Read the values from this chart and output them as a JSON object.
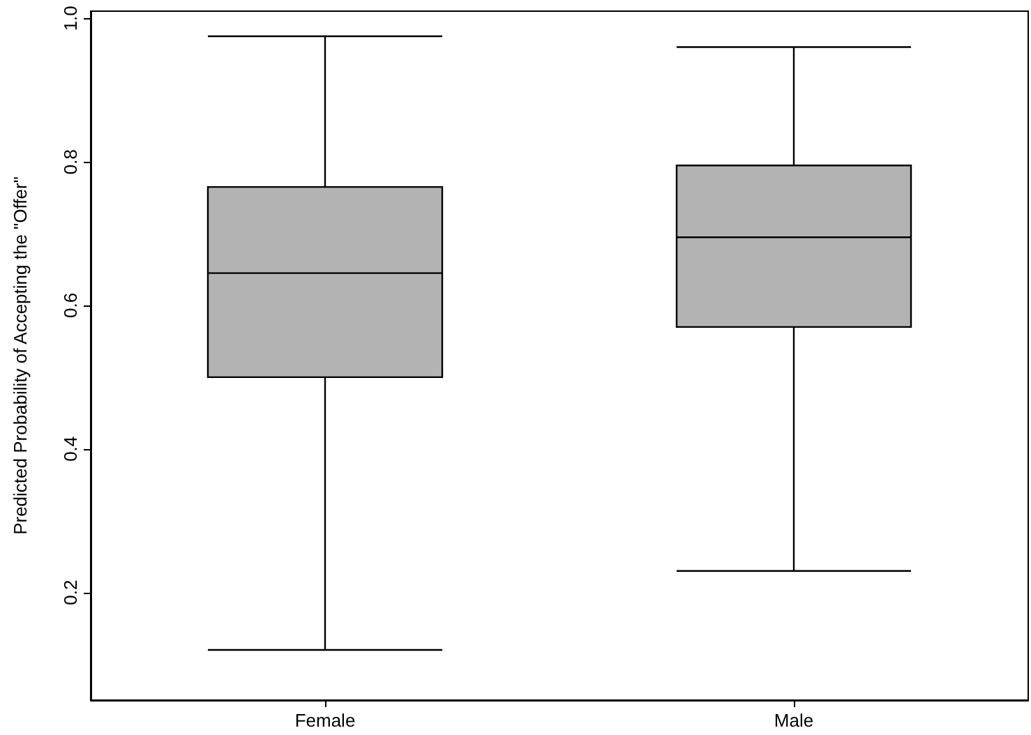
{
  "chart_data": {
    "type": "box",
    "ylabel": "Predicted Probability of Accepting the \"Offer\"",
    "categories": [
      "Female",
      "Male"
    ],
    "series": [
      {
        "color": "#b3b3b3",
        "boxes": [
          {
            "low": 0.12,
            "q1": 0.5,
            "median": 0.645,
            "q3": 0.765,
            "high": 0.975
          },
          {
            "low": 0.23,
            "q1": 0.57,
            "median": 0.695,
            "q3": 0.795,
            "high": 0.96
          }
        ]
      }
    ],
    "ylim": [
      0.05,
      1.01
    ],
    "yticks": [
      0.2,
      0.4,
      0.6,
      0.8,
      {
        "value": 1,
        "label": "1.0"
      }
    ]
  }
}
